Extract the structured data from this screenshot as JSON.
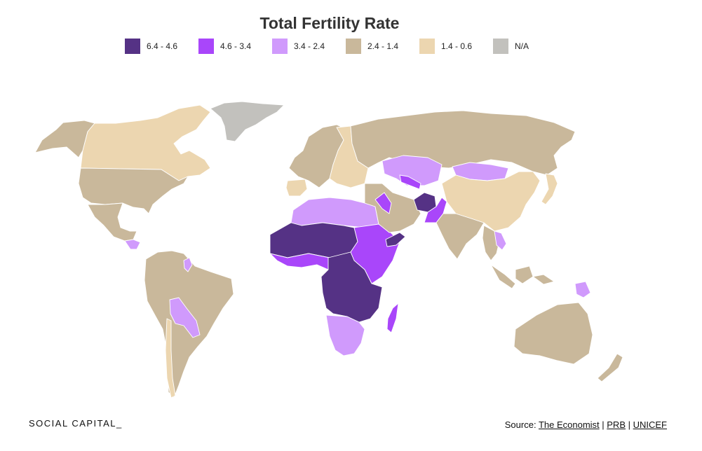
{
  "title": "Total Fertility Rate",
  "legend": [
    {
      "label": "6.4 - 4.6",
      "color": "#553285"
    },
    {
      "label": "4.6 - 3.4",
      "color": "#a946fa"
    },
    {
      "label": "3.4 - 2.4",
      "color": "#d09afc"
    },
    {
      "label": "2.4 - 1.4",
      "color": "#c9b89b"
    },
    {
      "label": "1.4 - 0.6",
      "color": "#ecd6b0"
    },
    {
      "label": "N/A",
      "color": "#c2c1bd"
    }
  ],
  "map": {
    "regions": [
      {
        "name": "alaska",
        "bin": 3
      },
      {
        "name": "canada",
        "bin": 4
      },
      {
        "name": "greenland",
        "bin": 5
      },
      {
        "name": "usa",
        "bin": 3
      },
      {
        "name": "mexico",
        "bin": 3
      },
      {
        "name": "central-america",
        "bin": 2
      },
      {
        "name": "south-america",
        "bin": 3
      },
      {
        "name": "bolivia-paraguay",
        "bin": 2
      },
      {
        "name": "guyana",
        "bin": 2
      },
      {
        "name": "chile",
        "bin": 4
      },
      {
        "name": "europe-west",
        "bin": 3
      },
      {
        "name": "europe-east",
        "bin": 4
      },
      {
        "name": "iberia",
        "bin": 4
      },
      {
        "name": "russia",
        "bin": 3
      },
      {
        "name": "north-africa",
        "bin": 2
      },
      {
        "name": "sahel",
        "bin": 0
      },
      {
        "name": "west-africa-coast",
        "bin": 1
      },
      {
        "name": "east-africa",
        "bin": 1
      },
      {
        "name": "central-africa",
        "bin": 0
      },
      {
        "name": "southern-africa",
        "bin": 2
      },
      {
        "name": "madagascar",
        "bin": 1
      },
      {
        "name": "middle-east",
        "bin": 3
      },
      {
        "name": "iraq",
        "bin": 1
      },
      {
        "name": "yemen",
        "bin": 0
      },
      {
        "name": "central-asia",
        "bin": 2
      },
      {
        "name": "uzbekistan",
        "bin": 1
      },
      {
        "name": "afghanistan",
        "bin": 0
      },
      {
        "name": "pakistan",
        "bin": 1
      },
      {
        "name": "india",
        "bin": 3
      },
      {
        "name": "mongolia",
        "bin": 2
      },
      {
        "name": "china",
        "bin": 4
      },
      {
        "name": "japan",
        "bin": 4
      },
      {
        "name": "southeast-asia",
        "bin": 3
      },
      {
        "name": "laos-cambodia",
        "bin": 2
      },
      {
        "name": "indonesia",
        "bin": 3
      },
      {
        "name": "papua-new-guinea",
        "bin": 2
      },
      {
        "name": "australia",
        "bin": 3
      },
      {
        "name": "new-zealand",
        "bin": 3
      }
    ]
  },
  "footer": {
    "brand": "SOCIAL CAPITAL_",
    "source_prefix": "Source: ",
    "sources": [
      "The Economist",
      "PRB",
      "UNICEF"
    ],
    "separator": " | "
  }
}
